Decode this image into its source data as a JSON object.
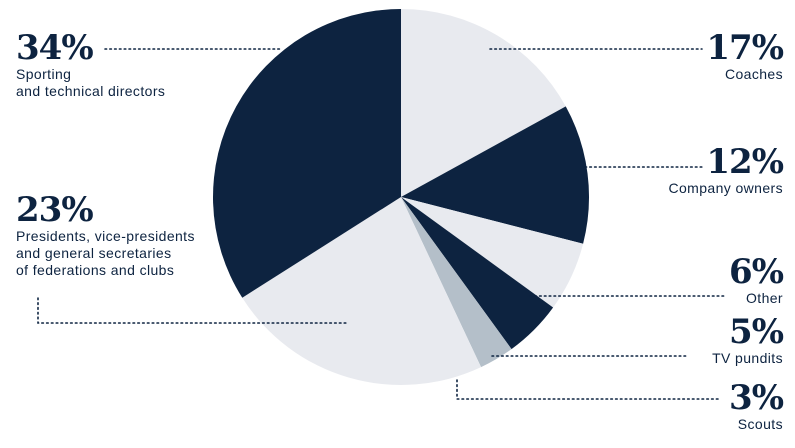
{
  "chart_data": {
    "type": "pie",
    "slices": [
      {
        "label": "Coaches",
        "value": 17,
        "value_label": "17%",
        "color": "#e8eaef"
      },
      {
        "label": "Company owners",
        "value": 12,
        "value_label": "12%",
        "color": "#0d2340"
      },
      {
        "label": "Other",
        "value": 6,
        "value_label": "6%",
        "color": "#e8eaef"
      },
      {
        "label": "TV pundits",
        "value": 5,
        "value_label": "5%",
        "color": "#0d2340"
      },
      {
        "label": "Scouts",
        "value": 3,
        "value_label": "3%",
        "color": "#b4bfc9"
      },
      {
        "label": "Presidents, vice-presidents\nand general secretaries\nof federations and clubs",
        "value": 23,
        "value_label": "23%",
        "color": "#e8eaef"
      },
      {
        "label": "Sporting\nand technical directors",
        "value": 34,
        "value_label": "34%",
        "color": "#0d2340"
      }
    ],
    "start_angle": "12 o'clock",
    "direction": "clockwise"
  },
  "colors": {
    "navy": "#0d2340",
    "light": "#e8eaef",
    "grey": "#b4bfc9",
    "text": "#0d2340"
  }
}
